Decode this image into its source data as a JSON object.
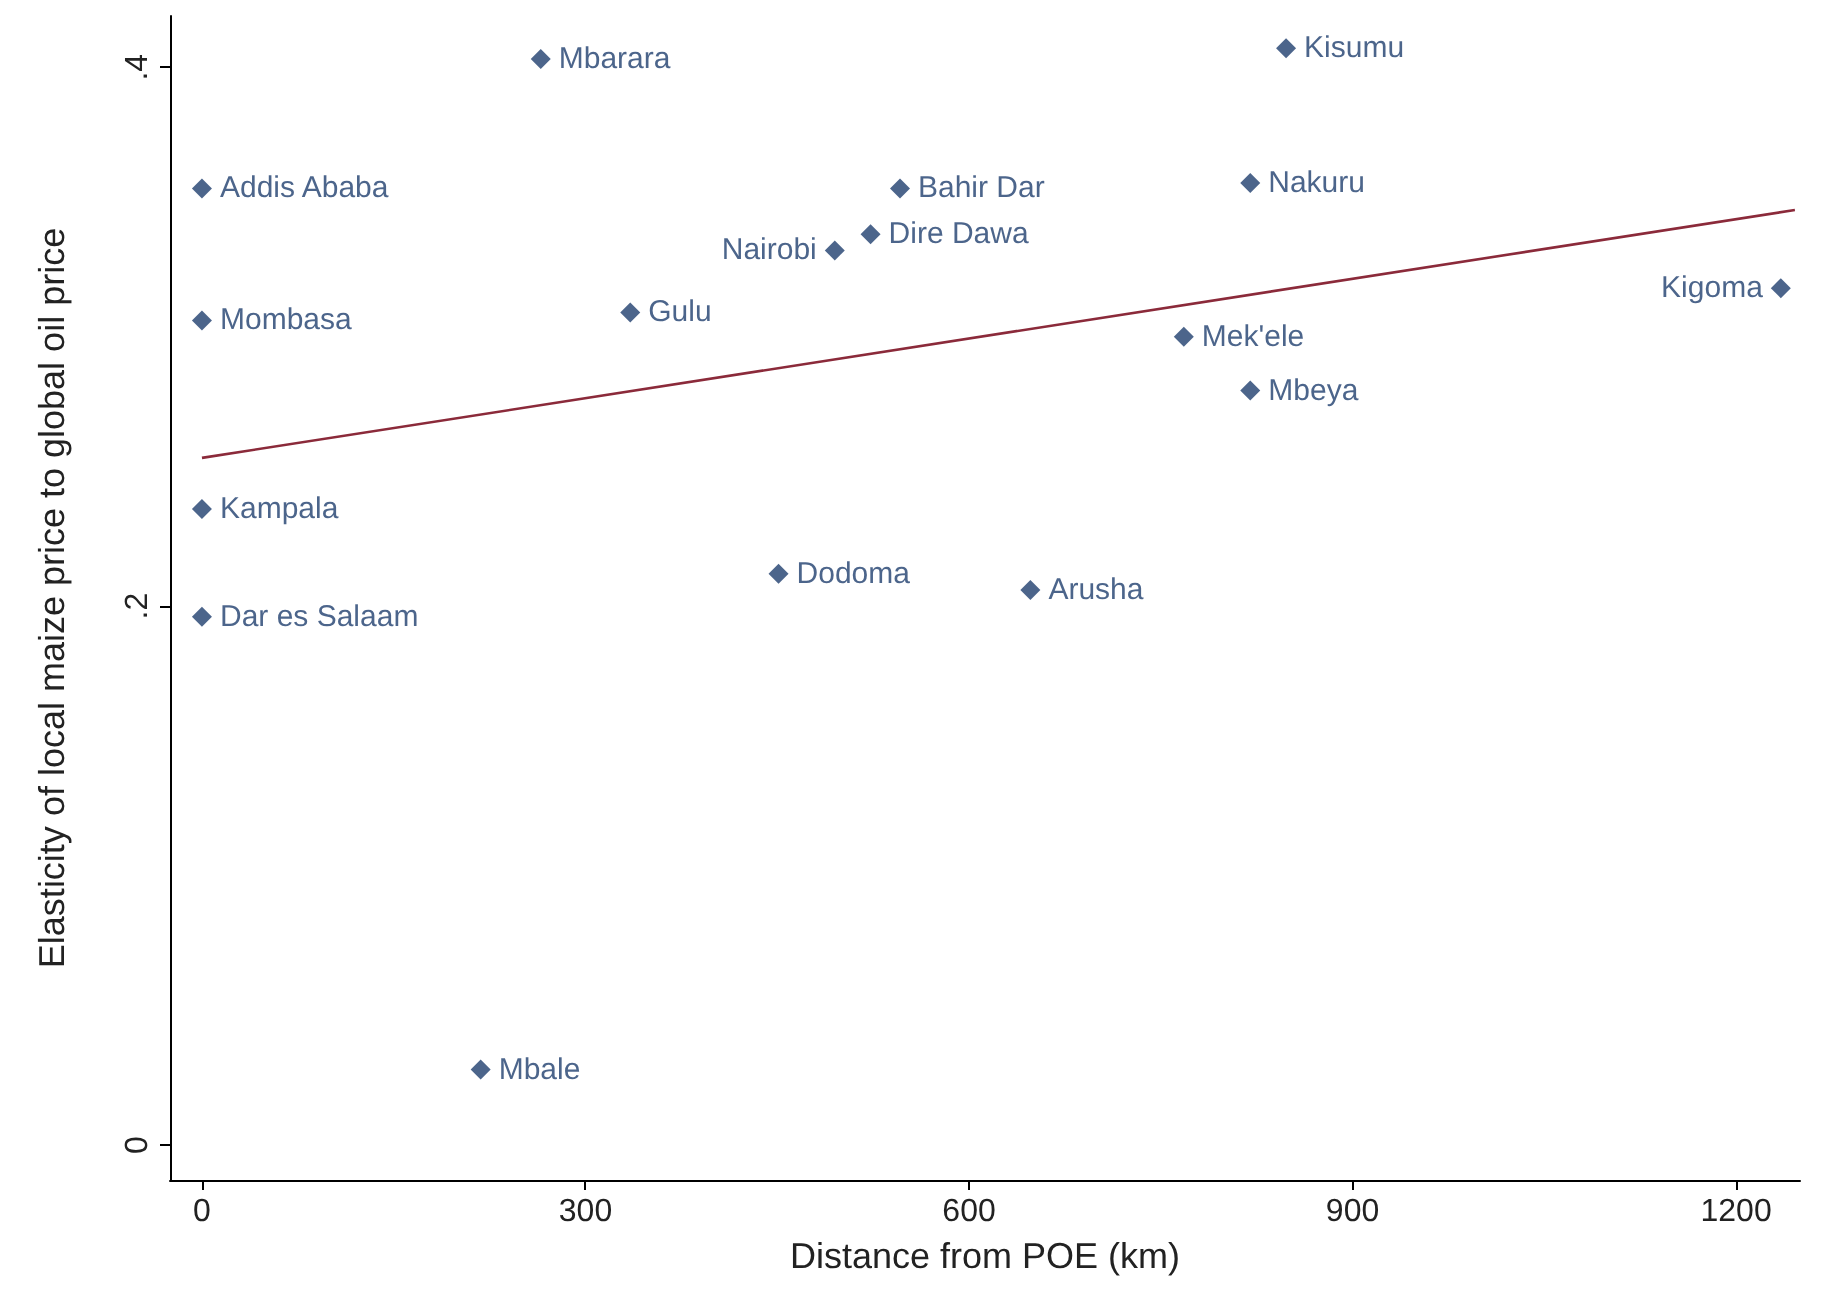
{
  "chart_data": {
    "type": "scatter",
    "xlabel": "Distance from POE (km)",
    "ylabel": "Elasticity of local maize price to global oil price",
    "xlim": [
      -25,
      1250
    ],
    "xticks": [
      0,
      300,
      600,
      900,
      1200
    ],
    "ylim": [
      -0.013,
      0.419
    ],
    "yticks": [
      {
        "value": 0,
        "label": "0"
      },
      {
        "value": 0.2,
        "label": ".2"
      },
      {
        "value": 0.4,
        "label": ".4"
      }
    ],
    "grid": false,
    "marker": "diamond",
    "series": [
      {
        "color": "#1f3f6e",
        "x": [
          265,
          848,
          0,
          546,
          820,
          523,
          495,
          0,
          335,
          1235,
          768,
          820,
          0,
          451,
          648,
          0,
          218
        ],
        "values": [
          0.403,
          0.407,
          0.355,
          0.355,
          0.357,
          0.338,
          0.332,
          0.306,
          0.309,
          0.318,
          0.3,
          0.28,
          0.236,
          0.212,
          0.206,
          0.196,
          0.028
        ]
      },
      {
        "type": "line",
        "color": "#8b2a3a",
        "x": [
          0,
          1246
        ],
        "values": [
          0.255,
          0.347
        ],
        "line_style": "solid",
        "marker": "none"
      }
    ],
    "annotations": [
      {
        "text": "Mbarara",
        "x": 265,
        "y": 0.403
      },
      {
        "text": "Kisumu",
        "x": 848,
        "y": 0.407
      },
      {
        "text": "Addis Ababa",
        "x": 0,
        "y": 0.355
      },
      {
        "text": "Bahir Dar",
        "x": 546,
        "y": 0.355
      },
      {
        "text": "Nakuru",
        "x": 820,
        "y": 0.357
      },
      {
        "text": "Dire Dawa",
        "x": 523,
        "y": 0.338
      },
      {
        "text": "Nairobi",
        "x": 495,
        "y": 0.332
      },
      {
        "text": "Mombasa",
        "x": 0,
        "y": 0.306
      },
      {
        "text": "Gulu",
        "x": 335,
        "y": 0.309
      },
      {
        "text": "Kigoma",
        "x": 1235,
        "y": 0.318
      },
      {
        "text": "Mek'ele",
        "x": 768,
        "y": 0.3
      },
      {
        "text": "Mbeya",
        "x": 820,
        "y": 0.28
      },
      {
        "text": "Kampala",
        "x": 0,
        "y": 0.236
      },
      {
        "text": "Dodoma",
        "x": 451,
        "y": 0.212
      },
      {
        "text": "Arusha",
        "x": 648,
        "y": 0.206
      },
      {
        "text": "Dar es Salaam",
        "x": 0,
        "y": 0.196
      },
      {
        "text": "Mbale",
        "x": 218,
        "y": 0.028
      }
    ]
  }
}
